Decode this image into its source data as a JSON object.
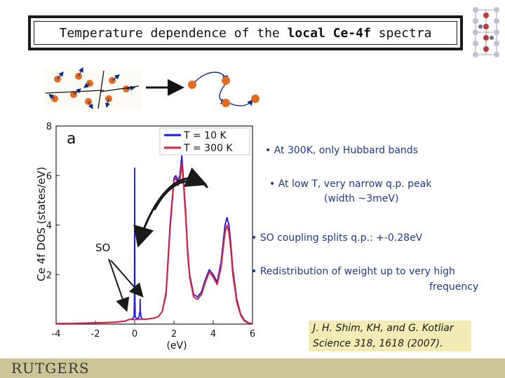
{
  "title": {
    "part1": "Temperature dependence of the ",
    "bold": "local Ce-4f",
    "part2": " spectra"
  },
  "bullets": {
    "b1": "• At 300K, only Hubbard bands",
    "b2_line1": "• At low T, very narrow q.p. peak",
    "b2_line2": "(width ~3meV)",
    "b3": "• SO coupling splits q.p.: +-0.28eV",
    "b4_line1": "• Redistribution of weight up to very high",
    "b4_line2": "frequency"
  },
  "so_label": "SO",
  "reference": {
    "line1": "J. H. Shim, KH, and G. Kotliar",
    "line2": "Science 318, 1618 (2007)."
  },
  "footer": {
    "logo_text": "RUTGERS"
  },
  "colors": {
    "low_T": "#1a1adc",
    "high_T": "#e0203a",
    "reference_bg": "#f1ebb4",
    "footer_bg": "#c9c596",
    "bullet_text": "#1d3a8a"
  },
  "chart_data": {
    "type": "line",
    "panel_label": "a",
    "xlabel": "(eV)",
    "ylabel": "Ce 4f DOS (states/eV)",
    "xlim": [
      -4,
      6
    ],
    "ylim": [
      0,
      8
    ],
    "xticks": [
      "-4",
      "-2",
      "0",
      "2",
      "4",
      "6"
    ],
    "yticks": [
      "2",
      "4",
      "6",
      "8"
    ],
    "legend_position": "top-right",
    "series": [
      {
        "name": "T = 10 K",
        "color": "#1a1adc",
        "x": [
          -4,
          -3,
          -2,
          -1.5,
          -1,
          -0.5,
          -0.3,
          -0.2,
          -0.1,
          -0.03,
          -0.01,
          0,
          0.01,
          0.03,
          0.1,
          0.2,
          0.27,
          0.28,
          0.29,
          0.32,
          0.4,
          0.6,
          0.8,
          1.0,
          1.2,
          1.4,
          1.6,
          1.8,
          2.0,
          2.1,
          2.2,
          2.3,
          2.4,
          2.5,
          2.6,
          2.7,
          2.8,
          3.0,
          3.2,
          3.4,
          3.6,
          3.8,
          4.0,
          4.2,
          4.4,
          4.6,
          4.7,
          4.8,
          4.9,
          5.0,
          5.2,
          5.4,
          5.6,
          5.8,
          6.0
        ],
        "y": [
          0.02,
          0.03,
          0.05,
          0.06,
          0.08,
          0.12,
          0.18,
          0.2,
          0.22,
          0.3,
          1.2,
          6.3,
          1.2,
          0.3,
          0.22,
          0.25,
          0.5,
          1.0,
          0.5,
          0.3,
          0.2,
          0.2,
          0.22,
          0.25,
          0.3,
          0.5,
          1.3,
          4.0,
          5.9,
          6.0,
          5.8,
          6.0,
          6.8,
          5.7,
          4.5,
          3.0,
          2.0,
          1.2,
          1.1,
          1.3,
          1.8,
          2.2,
          2.0,
          1.7,
          2.5,
          4.0,
          4.3,
          4.0,
          3.2,
          2.2,
          1.0,
          0.4,
          0.15,
          0.05,
          0.02
        ]
      },
      {
        "name": "T = 300 K",
        "color": "#e0203a",
        "x": [
          -4,
          -3,
          -2,
          -1.5,
          -1,
          -0.5,
          -0.3,
          -0.2,
          0,
          0.2,
          0.4,
          0.6,
          0.8,
          1.0,
          1.2,
          1.4,
          1.6,
          1.8,
          2.0,
          2.1,
          2.2,
          2.3,
          2.4,
          2.5,
          2.6,
          2.7,
          2.8,
          3.0,
          3.2,
          3.4,
          3.6,
          3.8,
          4.0,
          4.2,
          4.4,
          4.6,
          4.7,
          4.8,
          4.9,
          5.0,
          5.2,
          5.4,
          5.6,
          5.8,
          6.0
        ],
        "y": [
          0.02,
          0.03,
          0.05,
          0.06,
          0.08,
          0.12,
          0.18,
          0.2,
          0.18,
          0.2,
          0.2,
          0.2,
          0.22,
          0.25,
          0.3,
          0.5,
          1.2,
          3.8,
          5.8,
          5.9,
          5.6,
          5.8,
          6.5,
          5.5,
          4.3,
          2.8,
          1.9,
          1.1,
          1.0,
          1.2,
          1.7,
          2.1,
          1.9,
          1.6,
          2.3,
          3.7,
          4.0,
          3.7,
          3.0,
          2.0,
          0.9,
          0.35,
          0.12,
          0.04,
          0.02
        ]
      }
    ]
  }
}
